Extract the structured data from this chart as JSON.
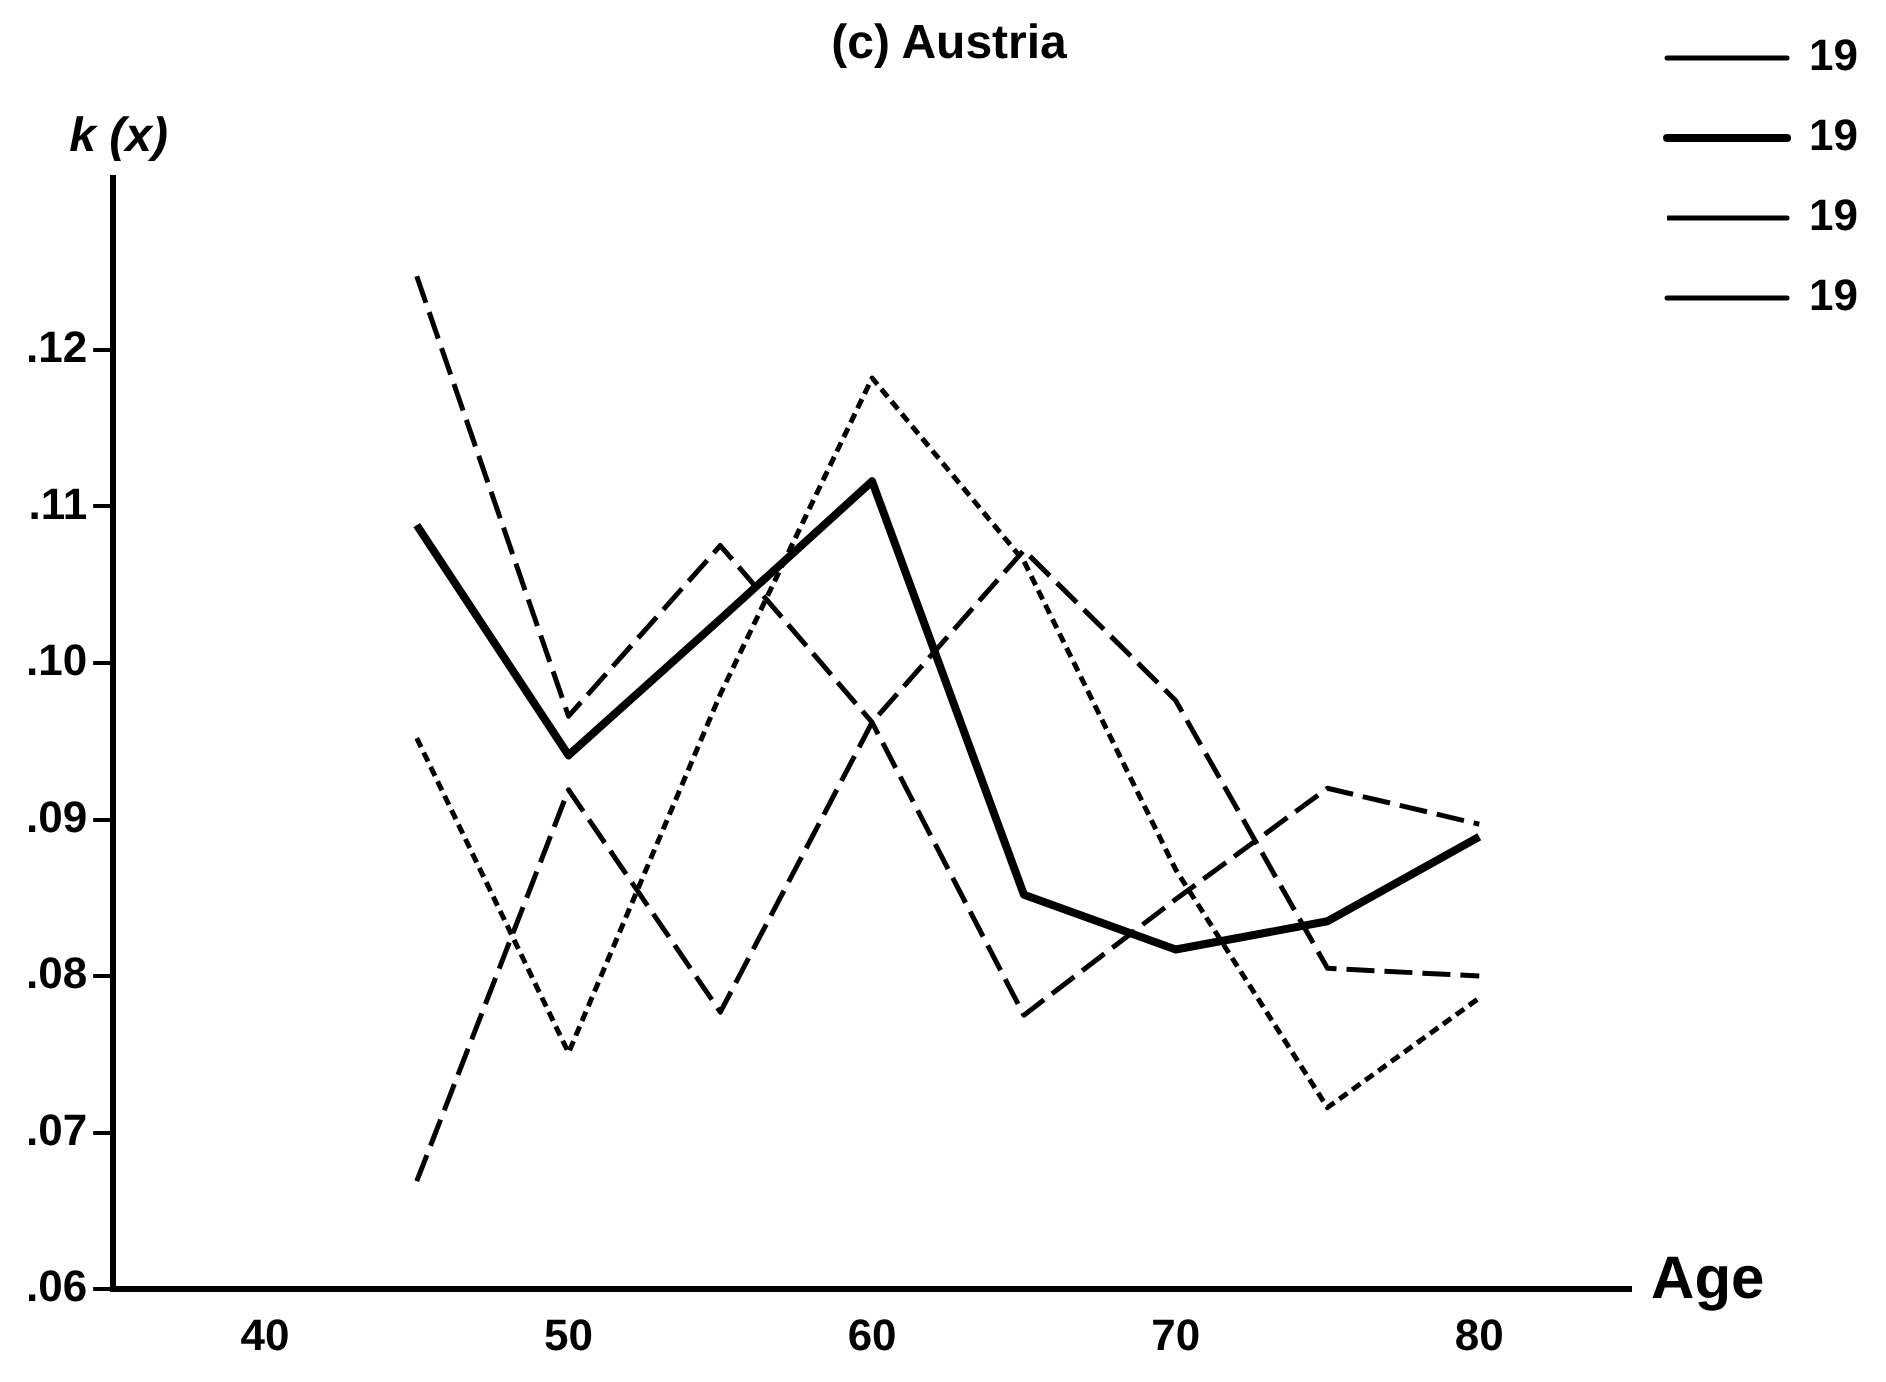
{
  "chart_data": {
    "type": "line",
    "title": "(c) Austria",
    "xlabel": "Age",
    "ylabel": "k (x)",
    "x": [
      45,
      50,
      55,
      60,
      65,
      70,
      75,
      80
    ],
    "series": [
      {
        "name": "19",
        "color": "#000000",
        "line_style": "dashed",
        "values": [
          0.1247,
          0.0966,
          0.1075,
          0.0962,
          0.0775,
          0.0849,
          0.092,
          0.0897
        ]
      },
      {
        "name": "19",
        "color": "#000000",
        "line_style": "solid",
        "values": [
          0.1088,
          0.0941,
          0.1028,
          0.1116,
          0.0852,
          0.0817,
          0.0835,
          0.0889
        ]
      },
      {
        "name": "19",
        "color": "#000000",
        "line_style": "dotted",
        "values": [
          0.0952,
          0.0751,
          0.098,
          0.1182,
          0.1065,
          0.0868,
          0.0716,
          0.0786
        ]
      },
      {
        "name": "19",
        "color": "#000000",
        "line_style": "dashed",
        "values": [
          0.0669,
          0.0919,
          0.0777,
          0.0962,
          0.1072,
          0.0976,
          0.0805,
          0.08
        ]
      }
    ],
    "xlim": [
      35,
      85
    ],
    "xticks": [
      40,
      50,
      60,
      70,
      80
    ],
    "ylim": [
      0.06,
      0.131
    ],
    "yticks": [
      {
        "value": 0.06,
        "label": ".06"
      },
      {
        "value": 0.07,
        "label": ".07"
      },
      {
        "value": 0.08,
        "label": ".08"
      },
      {
        "value": 0.09,
        "label": ".09"
      },
      {
        "value": 0.1,
        "label": ".10"
      },
      {
        "value": 0.11,
        "label": ".11"
      },
      {
        "value": 0.12,
        "label": ".12"
      }
    ],
    "grid": false,
    "legend": "top right",
    "marker": "none"
  }
}
